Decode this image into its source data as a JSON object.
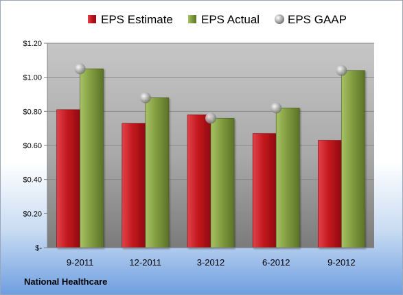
{
  "company_label": "National Healthcare",
  "chart_data": {
    "type": "bar",
    "categories": [
      "9-2011",
      "12-2011",
      "3-2012",
      "6-2012",
      "9-2012"
    ],
    "series": [
      {
        "name": "EPS Estimate",
        "kind": "bar",
        "color": "#c0141b",
        "values": [
          0.81,
          0.73,
          0.78,
          0.67,
          0.63
        ]
      },
      {
        "name": "EPS Actual",
        "kind": "bar",
        "color": "#7e9a3e",
        "values": [
          1.05,
          0.88,
          0.76,
          0.82,
          1.04
        ]
      },
      {
        "name": "EPS GAAP",
        "kind": "marker",
        "color": "#a6a6a6",
        "values": [
          1.05,
          0.88,
          0.76,
          0.82,
          1.04
        ]
      }
    ],
    "yticks": [
      "$-",
      "$0.20",
      "$0.40",
      "$0.60",
      "$0.80",
      "$1.00",
      "$1.20"
    ],
    "ylim": [
      0,
      1.2
    ],
    "grid": true,
    "legend_position": "top"
  }
}
